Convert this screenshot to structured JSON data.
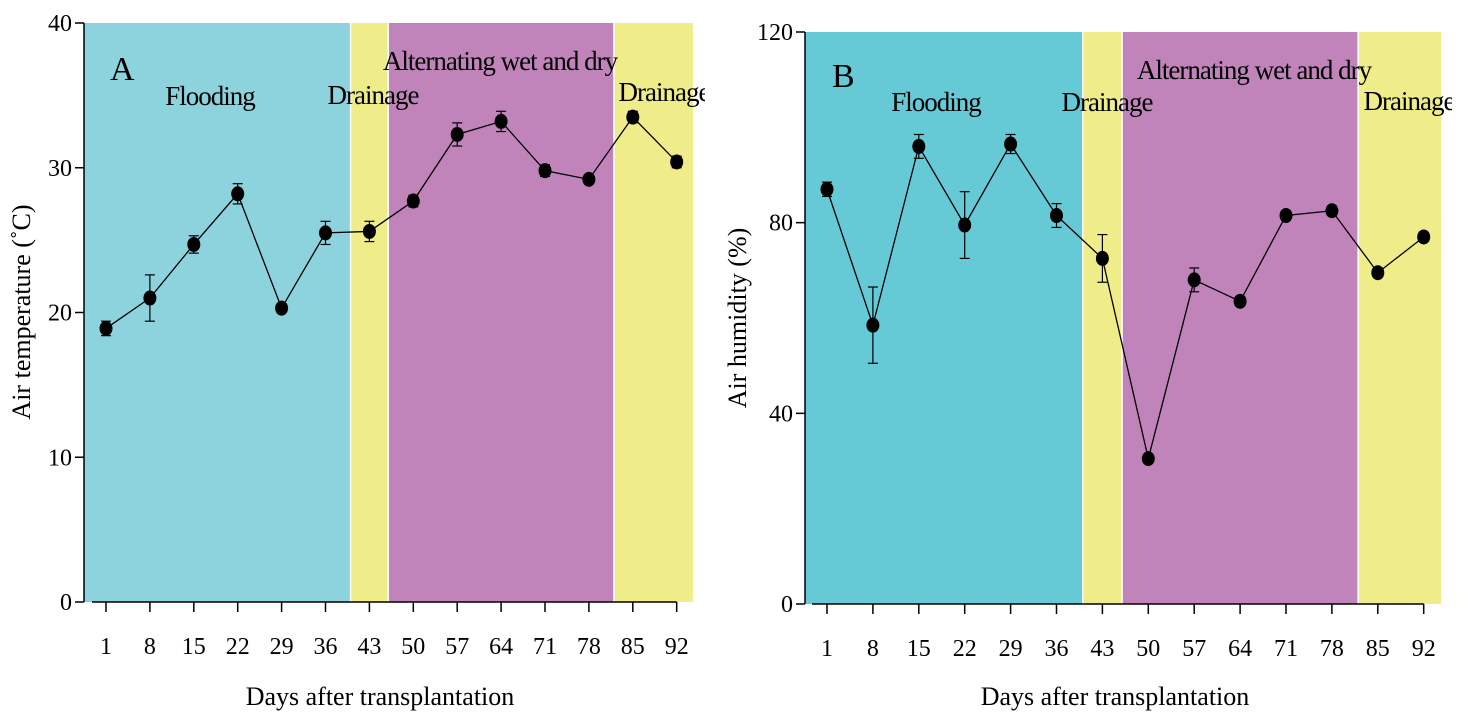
{
  "chart_data": [
    {
      "type": "line",
      "panel_label": "A",
      "xlabel": "Days after transplantation",
      "ylabel": "Air temperature (˚C)",
      "ylim": [
        0,
        40
      ],
      "yticks": [
        0,
        10,
        20,
        30,
        40
      ],
      "x": [
        1,
        8,
        15,
        22,
        29,
        36,
        43,
        50,
        57,
        64,
        71,
        78,
        85,
        92
      ],
      "y": [
        18.9,
        21.0,
        24.7,
        28.2,
        20.3,
        25.5,
        25.6,
        27.7,
        32.3,
        33.2,
        29.8,
        29.2,
        33.5,
        30.4
      ],
      "error": [
        0.5,
        1.6,
        0.6,
        0.7,
        0.3,
        0.8,
        0.7,
        0.4,
        0.8,
        0.7,
        0.4,
        0.3,
        0.4,
        0.4
      ],
      "phases": [
        {
          "label": "Flooding",
          "start": 1,
          "end": 40,
          "color": "#8dd3de"
        },
        {
          "label": "Drainage",
          "start": 40,
          "end": 46,
          "color": "#efec8a"
        },
        {
          "label": "Alternating wet and dry",
          "start": 46,
          "end": 82,
          "color": "#c084bb"
        },
        {
          "label": "Drainage",
          "start": 82,
          "end": 92,
          "color": "#efec8a"
        }
      ]
    },
    {
      "type": "line",
      "panel_label": "B",
      "xlabel": "Days after transplantation",
      "ylabel": "Air humidity (%)",
      "ylim": [
        0,
        120
      ],
      "yticks": [
        0,
        40,
        80,
        120
      ],
      "x": [
        1,
        8,
        15,
        22,
        29,
        36,
        43,
        50,
        57,
        64,
        71,
        78,
        85,
        92
      ],
      "y": [
        87,
        58.5,
        96,
        79.5,
        96.5,
        81.5,
        72.5,
        30.5,
        68,
        63.5,
        81.5,
        82.5,
        69.5,
        77
      ],
      "error": [
        1.5,
        8,
        2.5,
        7,
        2.0,
        2.5,
        5,
        0.8,
        2.5,
        1.0,
        1.0,
        1.0,
        1.0,
        1.0
      ],
      "phases": [
        {
          "label": "Flooding",
          "start": 1,
          "end": 40,
          "color": "#65c9d6"
        },
        {
          "label": "Drainage",
          "start": 40,
          "end": 46,
          "color": "#efec8a"
        },
        {
          "label": "Alternating wet and dry",
          "start": 46,
          "end": 82,
          "color": "#c084bb"
        },
        {
          "label": "Drainage",
          "start": 82,
          "end": 92,
          "color": "#efec8a"
        }
      ]
    }
  ]
}
